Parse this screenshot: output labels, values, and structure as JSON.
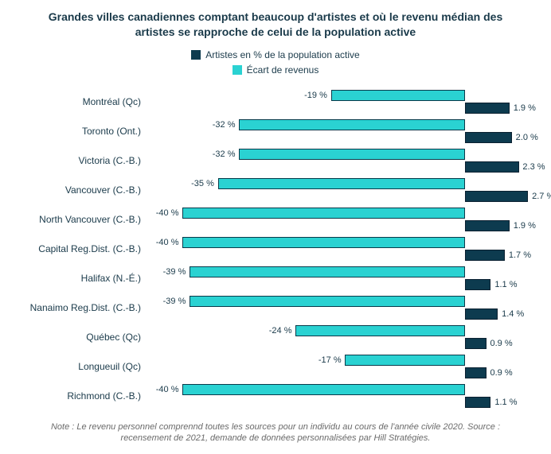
{
  "chart": {
    "type": "bar",
    "title": "Grandes villes canadiennes comptant beaucoup d'artistes et où le revenu médian des artistes se rapproche de celui de la population active",
    "title_color": "#1a3a4a",
    "title_fontsize": 14,
    "background_color": "#ffffff",
    "legend": {
      "items": [
        {
          "label": "Artistes en % de la population active",
          "color": "#0d3b4f"
        },
        {
          "label": "Écart de revenus",
          "color": "#2ad2d2"
        }
      ]
    },
    "colors": {
      "ecart": "#2ad2d2",
      "artiste": "#0d3b4f",
      "text": "#1a3a4a",
      "note": "#6a6a6a",
      "border": "#0a3a4a"
    },
    "fonts": {
      "label_size": 12,
      "value_size": 11,
      "note_size": 11
    },
    "baseline_pct": 82,
    "scale": {
      "neg_max": -45,
      "pos_max": 3.0
    },
    "cities": [
      {
        "name": "Montréal (Qc)",
        "ecart": -19,
        "ecart_label": "-19 %",
        "artiste": 1.9,
        "artiste_label": "1.9 %"
      },
      {
        "name": "Toronto (Ont.)",
        "ecart": -32,
        "ecart_label": "-32 %",
        "artiste": 2.0,
        "artiste_label": "2.0 %"
      },
      {
        "name": "Victoria (C.-B.)",
        "ecart": -32,
        "ecart_label": "-32 %",
        "artiste": 2.3,
        "artiste_label": "2.3 %"
      },
      {
        "name": "Vancouver (C.-B.)",
        "ecart": -35,
        "ecart_label": "-35 %",
        "artiste": 2.7,
        "artiste_label": "2.7 %"
      },
      {
        "name": "North Vancouver (C.-B.)",
        "ecart": -40,
        "ecart_label": "-40 %",
        "artiste": 1.9,
        "artiste_label": "1.9 %"
      },
      {
        "name": "Capital Reg.Dist. (C.-B.)",
        "ecart": -40,
        "ecart_label": "-40 %",
        "artiste": 1.7,
        "artiste_label": "1.7 %"
      },
      {
        "name": "Halifax (N.-É.)",
        "ecart": -39,
        "ecart_label": "-39 %",
        "artiste": 1.1,
        "artiste_label": "1.1 %"
      },
      {
        "name": "Nanaimo Reg.Dist. (C.-B.)",
        "ecart": -39,
        "ecart_label": "-39 %",
        "artiste": 1.4,
        "artiste_label": "1.4 %"
      },
      {
        "name": "Québec (Qc)",
        "ecart": -24,
        "ecart_label": "-24 %",
        "artiste": 0.9,
        "artiste_label": "0.9 %"
      },
      {
        "name": "Longueuil (Qc)",
        "ecart": -17,
        "ecart_label": "-17 %",
        "artiste": 0.9,
        "artiste_label": "0.9 %"
      },
      {
        "name": "Richmond (C.-B.)",
        "ecart": -40,
        "ecart_label": "-40 %",
        "artiste": 1.1,
        "artiste_label": "1.1 %"
      }
    ],
    "note": "Note : Le revenu personnel comprennd toutes les sources pour un individu au cours de l'année civile 2020. Source : recensement de 2021, demande de données personnalisées par Hill Stratégies."
  }
}
